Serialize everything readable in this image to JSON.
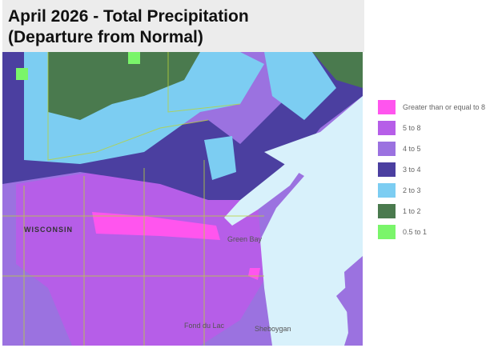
{
  "title": [
    "April 2026 - Total Precipitation",
    "(Departure from Normal)"
  ],
  "legend": {
    "items": [
      {
        "label": "Greater than or equal to 8",
        "color": "#ff55ee"
      },
      {
        "label": "5 to 8",
        "color": "#b65ee8"
      },
      {
        "label": "4 to 5",
        "color": "#9b72e0"
      },
      {
        "label": "3 to 4",
        "color": "#4b3fa0"
      },
      {
        "label": "2 to 3",
        "color": "#7ccdf2"
      },
      {
        "label": "1 to 2",
        "color": "#4a7a4e"
      },
      {
        "label": "0.5 to 1",
        "color": "#7af56a"
      }
    ]
  },
  "map": {
    "labels": [
      "WISCONSIN",
      "Green Bay",
      "Fond du Lac",
      "Sheboygan"
    ]
  }
}
